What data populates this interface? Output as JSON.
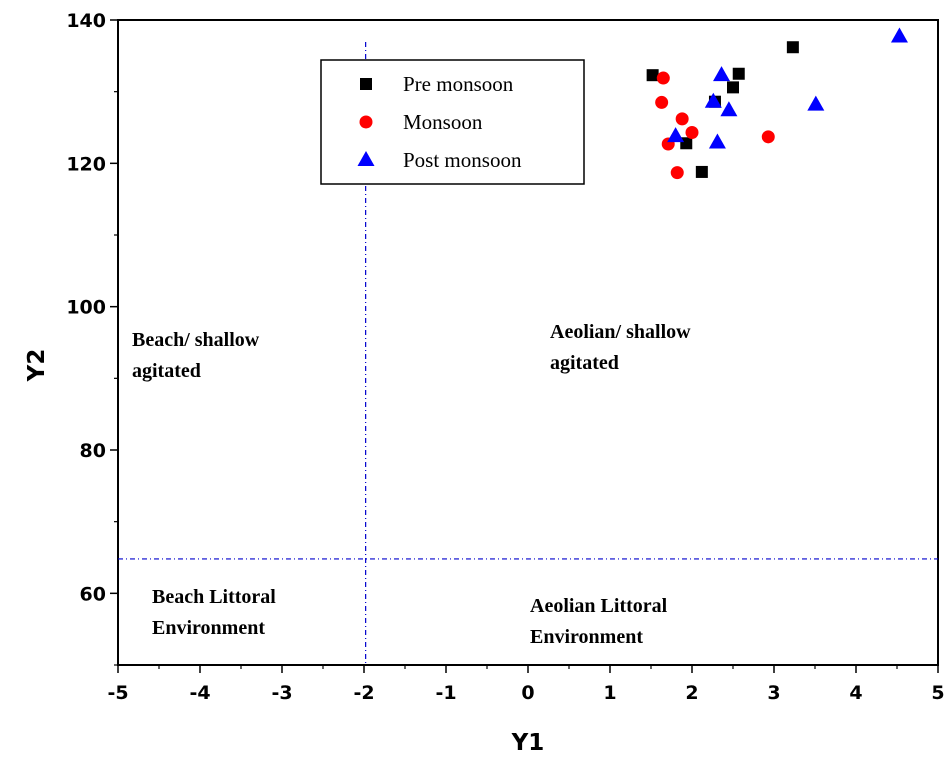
{
  "chart_data": {
    "type": "scatter",
    "xlabel": "Y1",
    "ylabel": "Y2",
    "xlim": [
      -5,
      5
    ],
    "ylim": [
      50,
      140
    ],
    "xticks": [
      -5,
      -4,
      -3,
      -2,
      -1,
      0,
      1,
      2,
      3,
      4,
      5
    ],
    "yticks": [
      60,
      80,
      100,
      120,
      140
    ],
    "grid": false,
    "legend_position": "top-center",
    "thresholds": {
      "x": -1.98,
      "y": 64.8,
      "color": "#0000cc",
      "style": "dash-dot"
    },
    "region_labels": [
      {
        "lines": [
          "Beach/ shallow",
          "agitated"
        ],
        "region": "top-left"
      },
      {
        "lines": [
          "Aeolian/ shallow",
          "agitated"
        ],
        "region": "top-right"
      },
      {
        "lines": [
          "Beach Littoral",
          "Environment"
        ],
        "region": "bottom-left"
      },
      {
        "lines": [
          "Aeolian Littoral",
          "Environment"
        ],
        "region": "bottom-right"
      }
    ],
    "series": [
      {
        "name": "Pre monsoon",
        "marker": "square",
        "color": "#000000",
        "points": [
          {
            "x": 1.52,
            "y": 132.3
          },
          {
            "x": 1.93,
            "y": 122.8
          },
          {
            "x": 2.12,
            "y": 118.8
          },
          {
            "x": 2.28,
            "y": 128.6
          },
          {
            "x": 2.5,
            "y": 130.6
          },
          {
            "x": 2.57,
            "y": 132.5
          },
          {
            "x": 3.23,
            "y": 136.2
          }
        ]
      },
      {
        "name": "Monsoon",
        "marker": "circle",
        "color": "#ff0000",
        "points": [
          {
            "x": 1.65,
            "y": 131.9
          },
          {
            "x": 1.63,
            "y": 128.5
          },
          {
            "x": 1.88,
            "y": 126.2
          },
          {
            "x": 1.71,
            "y": 122.7
          },
          {
            "x": 2.0,
            "y": 124.3
          },
          {
            "x": 1.82,
            "y": 118.7
          },
          {
            "x": 2.93,
            "y": 123.7
          }
        ]
      },
      {
        "name": "Post monsoon",
        "marker": "triangle",
        "color": "#0000ff",
        "points": [
          {
            "x": 1.8,
            "y": 123.8
          },
          {
            "x": 2.26,
            "y": 128.6
          },
          {
            "x": 2.36,
            "y": 132.3
          },
          {
            "x": 2.45,
            "y": 127.4
          },
          {
            "x": 2.31,
            "y": 122.9
          },
          {
            "x": 3.51,
            "y": 128.2
          },
          {
            "x": 4.53,
            "y": 137.7
          }
        ]
      }
    ]
  }
}
